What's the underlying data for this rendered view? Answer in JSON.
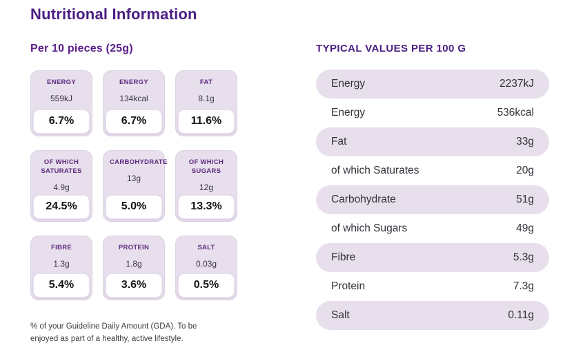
{
  "page_title": "Nutritional Information",
  "colors": {
    "accent_purple_dark": "#4a1d82",
    "accent_purple_label": "#5e2b80",
    "lavender_fill": "#e7dfec",
    "text_dark": "#36303a",
    "background": "#ffffff"
  },
  "per_serving": {
    "heading": "Per 10 pieces (25g)",
    "cards": [
      {
        "label": "ENERGY",
        "amount": "559kJ",
        "gda_percent": "6.7%"
      },
      {
        "label": "ENERGY",
        "amount": "134kcal",
        "gda_percent": "6.7%"
      },
      {
        "label": "FAT",
        "amount": "8.1g",
        "gda_percent": "11.6%"
      },
      {
        "label": "OF WHICH SATURATES",
        "amount": "4.9g",
        "gda_percent": "24.5%"
      },
      {
        "label": "CARBOHYDRATE",
        "amount": "13g",
        "gda_percent": "5.0%"
      },
      {
        "label": "OF WHICH SUGARS",
        "amount": "12g",
        "gda_percent": "13.3%"
      },
      {
        "label": "FIBRE",
        "amount": "1.3g",
        "gda_percent": "5.4%"
      },
      {
        "label": "PROTEIN",
        "amount": "1.8g",
        "gda_percent": "3.6%"
      },
      {
        "label": "SALT",
        "amount": "0.03g",
        "gda_percent": "0.5%"
      }
    ],
    "footnote": "% of your Guideline Daily Amount (GDA). To be enjoyed as part of a healthy, active lifestyle."
  },
  "typical_values": {
    "heading": "TYPICAL VALUES PER 100 G",
    "rows": [
      {
        "label": "Energy",
        "value": "2237kJ"
      },
      {
        "label": "Energy",
        "value": "536kcal"
      },
      {
        "label": "Fat",
        "value": "33g"
      },
      {
        "label": "of which Saturates",
        "value": "20g"
      },
      {
        "label": "Carbohydrate",
        "value": "51g"
      },
      {
        "label": "of which Sugars",
        "value": "49g"
      },
      {
        "label": "Fibre",
        "value": "5.3g"
      },
      {
        "label": "Protein",
        "value": "7.3g"
      },
      {
        "label": "Salt",
        "value": "0.11g"
      }
    ]
  }
}
